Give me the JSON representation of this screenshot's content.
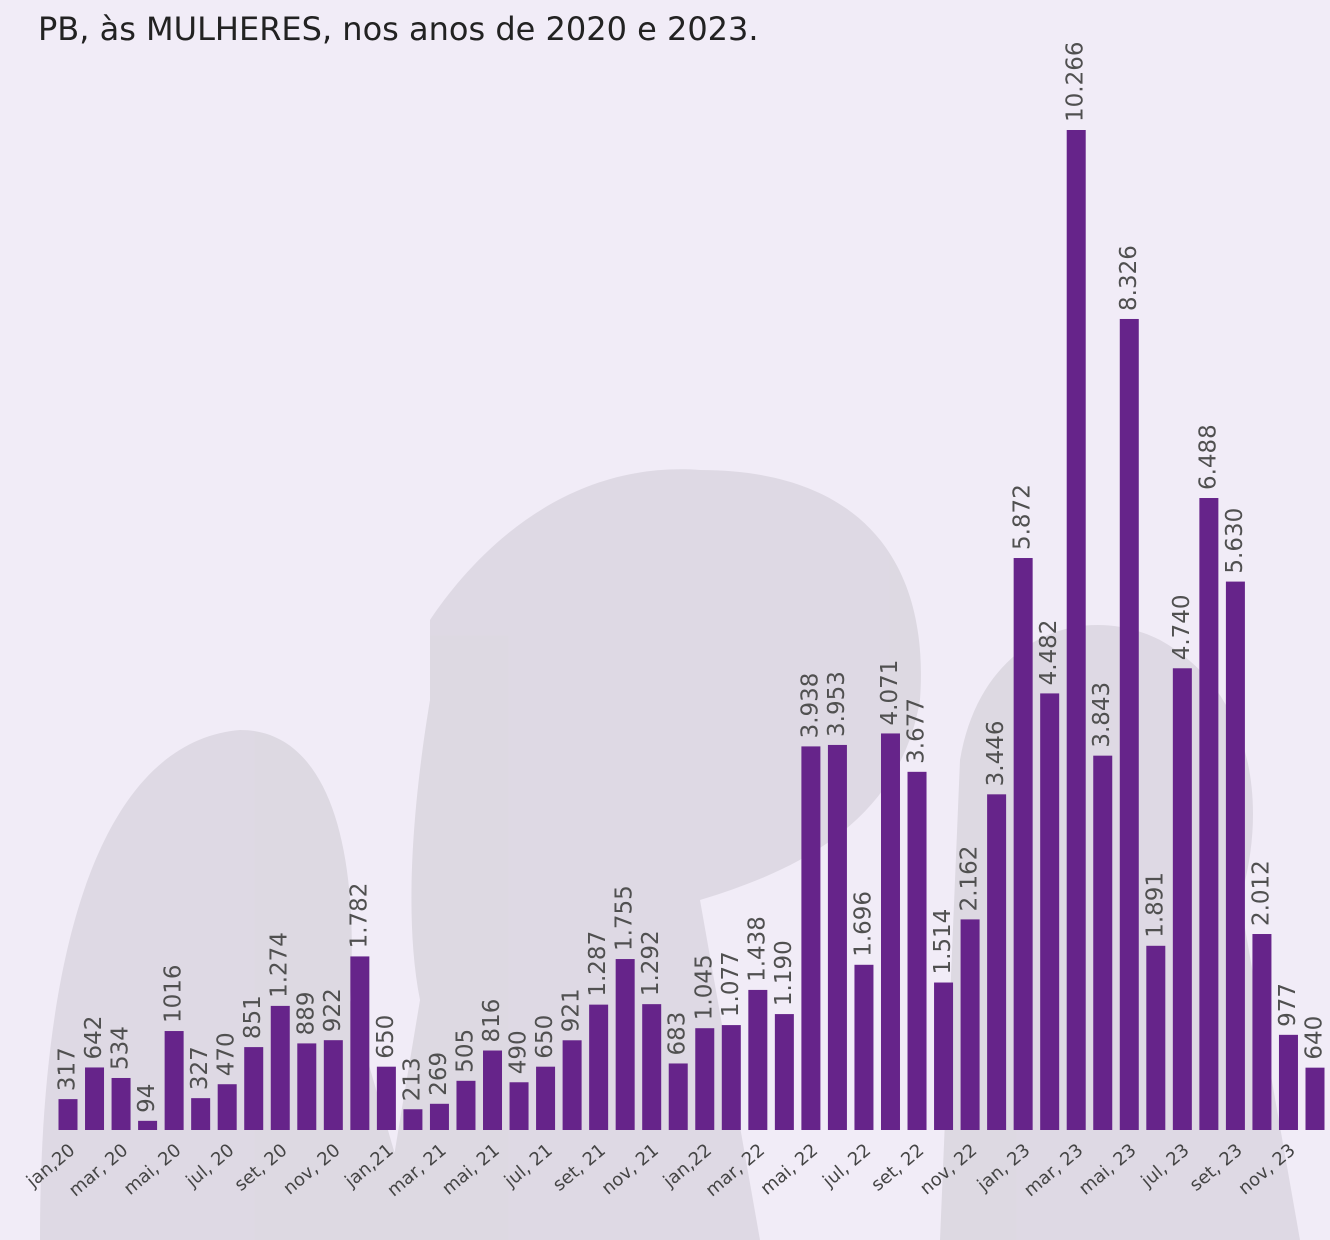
{
  "chart_data": {
    "type": "bar",
    "title": "PB, às MULHERES, nos anos de 2020 e 2023.",
    "color": "#66248a",
    "categories": [
      "jan,20",
      null,
      "mar, 20",
      null,
      "mai, 20",
      null,
      "jul, 20",
      null,
      "set, 20",
      null,
      "nov, 20",
      null,
      "jan,21",
      null,
      "mar, 21",
      null,
      "mai, 21",
      null,
      "jul, 21",
      null,
      "set, 21",
      null,
      "nov, 21",
      null,
      "jan,22",
      null,
      "mar, 22",
      null,
      "mai, 22",
      null,
      "jul, 22",
      null,
      "set, 22",
      null,
      "nov, 22",
      null,
      "jan, 23",
      null,
      "mar, 23",
      null,
      "mai, 23",
      null,
      "jul, 23",
      null,
      "set, 23",
      null,
      "nov, 23",
      null
    ],
    "values": [
      317,
      642,
      534,
      94,
      1016,
      327,
      470,
      851,
      1274,
      889,
      922,
      1782,
      650,
      213,
      269,
      505,
      816,
      490,
      650,
      921,
      1287,
      1755,
      1292,
      683,
      1045,
      1077,
      1438,
      1190,
      3938,
      3953,
      1696,
      4071,
      3677,
      1514,
      2162,
      3446,
      5872,
      4482,
      10266,
      3843,
      8326,
      1891,
      4740,
      6488,
      5630,
      2012,
      977,
      640
    ],
    "value_labels": [
      "317",
      "642",
      "534",
      "94",
      "1016",
      "327",
      "470",
      "851",
      "1.274",
      "889",
      "922",
      "1.782",
      "650",
      "213",
      "269",
      "505",
      "816",
      "490",
      "650",
      "921",
      "1.287",
      "1.755",
      "1.292",
      "683",
      "1.045",
      "1.077",
      "1.438",
      "1.190",
      "3.938",
      "3.953",
      "1.696",
      "4.071",
      "3.677",
      "1.514",
      "2.162",
      "3.446",
      "5.872",
      "4.482",
      "10.266",
      "3.843",
      "8.326",
      "1.891",
      "4.740",
      "6.488",
      "5.630",
      "2.012",
      "977",
      "640"
    ]
  }
}
